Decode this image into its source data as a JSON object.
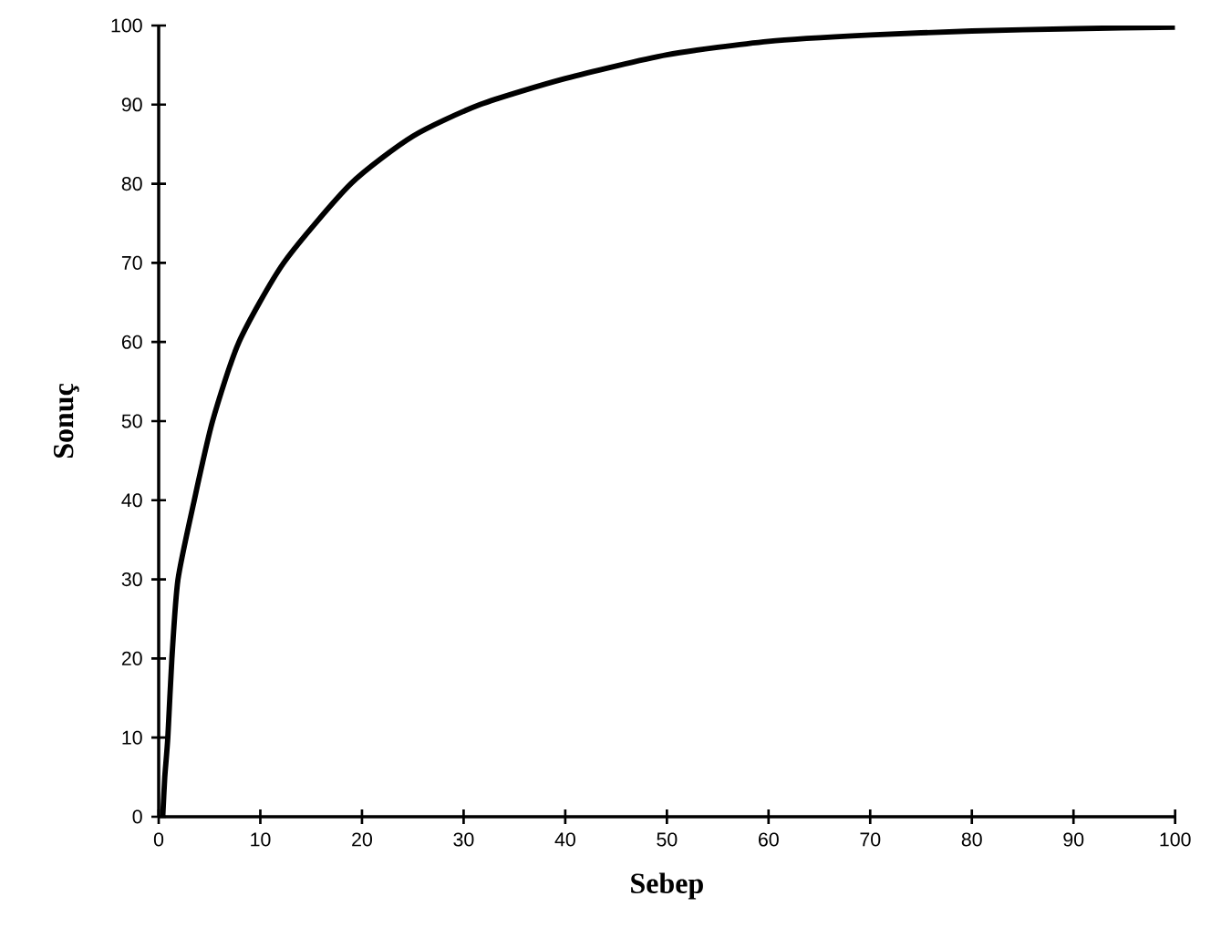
{
  "chart_data": {
    "type": "line",
    "xlabel": "Sebep",
    "ylabel": "Sonuç",
    "x": [
      0.4,
      0.6,
      0.9,
      1.3,
      1.9,
      3.5,
      5.3,
      7.9,
      12.3,
      18.9,
      25,
      31.6,
      40,
      50,
      60,
      70,
      80,
      90,
      100
    ],
    "series": [
      {
        "color": "#000000",
        "values": [
          0,
          5,
          10,
          20,
          30,
          40,
          50,
          60,
          70,
          80,
          86,
          90,
          93.3,
          96.3,
          98,
          98.8,
          99.3,
          99.6,
          99.8
        ]
      }
    ],
    "xlim": [
      0,
      100
    ],
    "ylim": [
      0,
      100
    ],
    "xticks": [
      0,
      10,
      20,
      30,
      40,
      50,
      60,
      70,
      80,
      90,
      100
    ],
    "yticks": [
      0,
      10,
      20,
      30,
      40,
      50,
      60,
      70,
      80,
      90,
      100
    ],
    "grid": false,
    "legend": false,
    "marker": "none",
    "line_style": "solid"
  }
}
